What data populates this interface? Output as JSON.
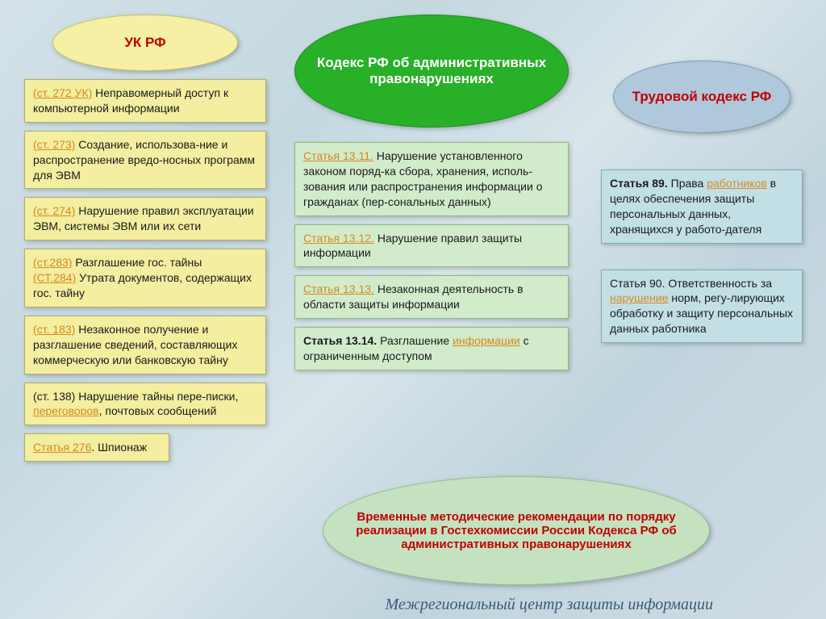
{
  "colors": {
    "oval1_bg": "#f5f0a4",
    "oval1_border": "#c7c36a",
    "oval2_bg": "#28b028",
    "oval2_border": "#1e8e1e",
    "oval3_bg": "#b0c8dc",
    "oval3_border": "#7d9db5",
    "box1_bg": "#f3eea0",
    "box1_border": "#b2ae6b",
    "box2_bg": "#d2ebcb",
    "box2_border": "#8db882",
    "box3_bg": "#c2dfe6",
    "box3_border": "#84aab5",
    "bottom_bg": "#c5e2c0",
    "bottom_border": "#96bd90",
    "title_red": "#c00000",
    "title_white": "#ffffff",
    "link_orange": "#d68a1f",
    "text_black": "#1a1a1a",
    "text_red": "#c00000",
    "text_blue": "#2a5885",
    "footer_color": "#3a5a7a"
  },
  "fonts": {
    "oval_title": 17,
    "box_text": 14,
    "bottom_text": 15,
    "footer_text": 20
  },
  "column1": {
    "title": "УК  РФ",
    "boxes": [
      {
        "link": "(ст. 272 УК)",
        "text": " Неправомерный доступ к компьютерной информации"
      },
      {
        "link": "(ст. 273)",
        "text": " Создание, использова-ние и распространение вредо-носных программ для ЭВМ"
      },
      {
        "link": "(ст. 274)",
        "text": " Нарушение правил эксплуатации ЭВМ, системы ЭВМ или их сети"
      },
      {
        "link": "(ст.283)",
        "text": " Разглашение гос. тайны ",
        "link2": "(СТ.284)",
        "text2": " Утрата документов, содержащих гос. тайну"
      },
      {
        "link": " (ст. 183)",
        "text": " Незаконное получение и разглашение сведений, составляющих коммерческую или банковскую тайну"
      },
      {
        "plain": "(ст. 138) Нарушение тайны пере-писки, ",
        "link3": "переговоров",
        "text3": ", почтовых сообщений"
      },
      {
        "link": "Статья 276",
        "text": ". Шпионаж"
      }
    ]
  },
  "column2": {
    "title": "Кодекс РФ об административных правонарушениях",
    "boxes": [
      {
        "link": "Статья 13.11.",
        "text": " Нарушение установленного законом поряд-ка сбора, хранения, исполь-зования или распространения информации о гражданах (пер-сональных данных)"
      },
      {
        "link": "Статья 13.12.",
        "text": " Нарушение правил защиты информации"
      },
      {
        "link": "Статья 13.13.",
        "text": " Незаконная деятельность в области защиты информации"
      },
      {
        "bold": "Статья 13.14.",
        "text": " Разглашение ",
        "link3": "информации",
        "text3": " с ограниченным доступом"
      }
    ]
  },
  "column3": {
    "title": "Трудовой кодекс РФ",
    "boxes": [
      {
        "bold": "Статья 89.",
        "text": " Права ",
        "link3": "работников",
        "text3": " в целях обеспечения защиты персональных данных, хранящихся у работо-дателя"
      },
      {
        "plain": "Статья 90. Ответственность за ",
        "link3": "нарушение",
        "text3": " норм, регу-лирующих обработку и защиту персональных данных работника"
      }
    ]
  },
  "bottom": {
    "text": "Временные методические рекомендации по порядку реализации в Гостехкомиссии России Кодекса РФ об административных правонарушениях "
  },
  "footer": "Межрегиональный центр защиты информации"
}
